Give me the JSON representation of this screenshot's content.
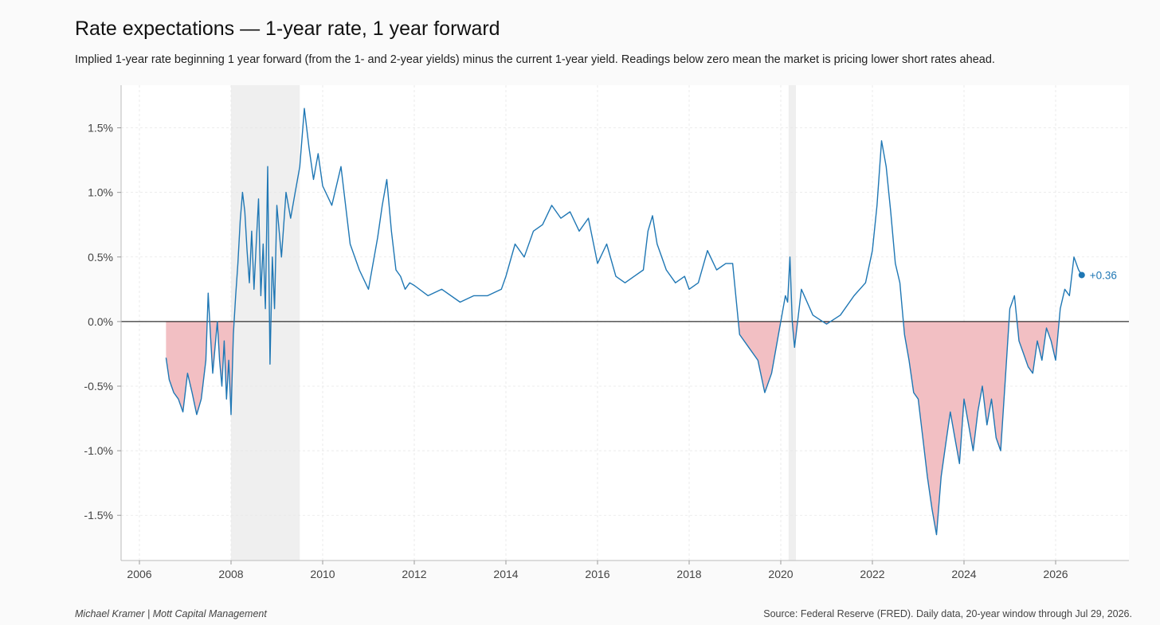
{
  "header": {
    "title": "Rate expectations — 1-year rate, 1 year forward",
    "subtitle": "Implied 1-year rate beginning 1 year forward (from the 1- and 2-year yields) minus the current 1-year yield. Readings below zero mean the market is pricing lower short rates ahead."
  },
  "footer": {
    "author": "Michael Kramer  |  Mott Capital Management",
    "source": "Source: Federal Reserve (FRED). Daily data, 20-year window through Jul 29, 2026."
  },
  "colors": {
    "line": "#1f77b4",
    "negative_fill": "#f2bfc3",
    "recession_shade": "#efefef",
    "zero_line": "#000000",
    "plot_bg": "#ffffff",
    "grid": "#e6e6e6"
  },
  "chart_data": {
    "type": "line",
    "title": "Rate expectations — 1-year rate, 1 year forward",
    "xlabel": "",
    "ylabel": "",
    "xlim": [
      2005.6,
      2027.6
    ],
    "ylim": [
      -1.85,
      1.83
    ],
    "grid": true,
    "x_ticks": [
      2006,
      2008,
      2010,
      2012,
      2014,
      2016,
      2018,
      2020,
      2022,
      2024,
      2026
    ],
    "x_tick_labels": [
      "2006",
      "2008",
      "2010",
      "2012",
      "2014",
      "2016",
      "2018",
      "2020",
      "2022",
      "2024",
      "2026"
    ],
    "y_ticks": [
      -1.5,
      -1.0,
      -0.5,
      0.0,
      0.5,
      1.0,
      1.5
    ],
    "y_tick_labels": [
      "-1.5%",
      "-1.0%",
      "-0.5%",
      "0.0%",
      "0.5%",
      "1.0%",
      "1.5%"
    ],
    "shaded_periods": [
      [
        2008.0,
        2009.5
      ],
      [
        2020.17,
        2020.33
      ]
    ],
    "negative_area_fill": true,
    "end_label": "+0.36",
    "series": [
      {
        "x": [
          2006.58,
          2006.65,
          2006.75,
          2006.85,
          2006.95,
          2007.05,
          2007.15,
          2007.25,
          2007.35,
          2007.45,
          2007.5,
          2007.55,
          2007.6,
          2007.65,
          2007.7,
          2007.75,
          2007.8,
          2007.85,
          2007.9,
          2007.95,
          2008.0,
          2008.05,
          2008.1,
          2008.15,
          2008.2,
          2008.25,
          2008.3,
          2008.35,
          2008.4,
          2008.45,
          2008.5,
          2008.55,
          2008.6,
          2008.65,
          2008.7,
          2008.75,
          2008.8,
          2008.85,
          2008.9,
          2008.95,
          2009.0,
          2009.1,
          2009.2,
          2009.3,
          2009.4,
          2009.5,
          2009.6,
          2009.7,
          2009.8,
          2009.9,
          2010.0,
          2010.2,
          2010.4,
          2010.6,
          2010.8,
          2011.0,
          2011.2,
          2011.3,
          2011.4,
          2011.5,
          2011.6,
          2011.7,
          2011.8,
          2011.9,
          2012.0,
          2012.3,
          2012.6,
          2013.0,
          2013.3,
          2013.6,
          2013.9,
          2014.0,
          2014.2,
          2014.4,
          2014.6,
          2014.8,
          2015.0,
          2015.2,
          2015.4,
          2015.6,
          2015.8,
          2016.0,
          2016.2,
          2016.4,
          2016.6,
          2016.8,
          2017.0,
          2017.1,
          2017.2,
          2017.3,
          2017.5,
          2017.7,
          2017.9,
          2018.0,
          2018.2,
          2018.4,
          2018.6,
          2018.8,
          2018.95,
          2019.1,
          2019.3,
          2019.5,
          2019.65,
          2019.8,
          2019.95,
          2020.1,
          2020.15,
          2020.2,
          2020.25,
          2020.3,
          2020.45,
          2020.7,
          2021.0,
          2021.3,
          2021.6,
          2021.85,
          2022.0,
          2022.1,
          2022.2,
          2022.3,
          2022.4,
          2022.5,
          2022.6,
          2022.7,
          2022.8,
          2022.9,
          2023.0,
          2023.1,
          2023.2,
          2023.3,
          2023.4,
          2023.5,
          2023.6,
          2023.7,
          2023.8,
          2023.9,
          2024.0,
          2024.1,
          2024.2,
          2024.3,
          2024.4,
          2024.5,
          2024.6,
          2024.7,
          2024.8,
          2024.9,
          2025.0,
          2025.1,
          2025.2,
          2025.3,
          2025.4,
          2025.5,
          2025.6,
          2025.7,
          2025.8,
          2025.9,
          2026.0,
          2026.1,
          2026.2,
          2026.3,
          2026.4,
          2026.5,
          2026.57
        ],
        "y": [
          -0.28,
          -0.45,
          -0.55,
          -0.6,
          -0.7,
          -0.4,
          -0.55,
          -0.72,
          -0.6,
          -0.3,
          0.22,
          -0.1,
          -0.4,
          -0.2,
          0.0,
          -0.3,
          -0.5,
          -0.15,
          -0.6,
          -0.3,
          -0.72,
          -0.1,
          0.2,
          0.45,
          0.78,
          1.0,
          0.85,
          0.55,
          0.3,
          0.7,
          0.25,
          0.6,
          0.95,
          0.2,
          0.6,
          0.1,
          1.2,
          -0.33,
          0.5,
          0.1,
          0.9,
          0.5,
          1.0,
          0.8,
          1.0,
          1.2,
          1.65,
          1.35,
          1.1,
          1.3,
          1.05,
          0.9,
          1.2,
          0.6,
          0.4,
          0.25,
          0.65,
          0.9,
          1.1,
          0.7,
          0.4,
          0.35,
          0.25,
          0.3,
          0.28,
          0.2,
          0.25,
          0.15,
          0.2,
          0.2,
          0.25,
          0.35,
          0.6,
          0.5,
          0.7,
          0.75,
          0.9,
          0.8,
          0.85,
          0.7,
          0.8,
          0.45,
          0.6,
          0.35,
          0.3,
          0.35,
          0.4,
          0.7,
          0.82,
          0.6,
          0.4,
          0.3,
          0.35,
          0.25,
          0.3,
          0.55,
          0.4,
          0.45,
          0.45,
          -0.1,
          -0.2,
          -0.3,
          -0.55,
          -0.4,
          -0.1,
          0.2,
          0.15,
          0.5,
          0.0,
          -0.2,
          0.25,
          0.05,
          -0.02,
          0.05,
          0.2,
          0.3,
          0.55,
          0.9,
          1.4,
          1.2,
          0.85,
          0.45,
          0.3,
          -0.1,
          -0.3,
          -0.55,
          -0.6,
          -0.9,
          -1.2,
          -1.45,
          -1.65,
          -1.2,
          -0.95,
          -0.7,
          -0.9,
          -1.1,
          -0.6,
          -0.8,
          -1.0,
          -0.7,
          -0.5,
          -0.8,
          -0.6,
          -0.9,
          -1.0,
          -0.45,
          0.1,
          0.2,
          -0.15,
          -0.25,
          -0.35,
          -0.4,
          -0.15,
          -0.3,
          -0.05,
          -0.15,
          -0.3,
          0.1,
          0.25,
          0.2,
          0.5,
          0.4,
          0.36
        ]
      }
    ]
  }
}
